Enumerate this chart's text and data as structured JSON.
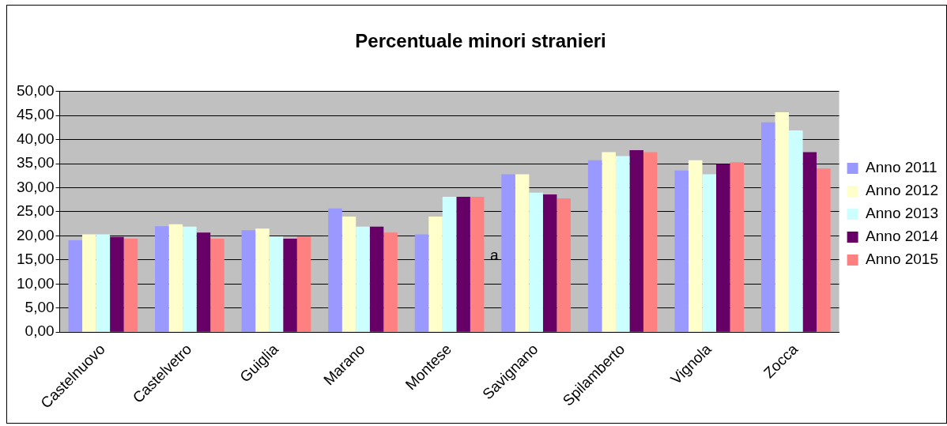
{
  "chart_data": {
    "type": "bar",
    "title": "Percentuale minori stranieri",
    "categories": [
      "Castelnuovo",
      "Castelvetro",
      "Guiglia",
      "Marano",
      "Montese",
      "Savignano",
      "Spilamberto",
      "Vignola",
      "Zocca"
    ],
    "series": [
      {
        "name": "Anno 2011",
        "color": "#9999ff",
        "values": [
          19.1,
          22.0,
          21.2,
          25.7,
          20.3,
          32.8,
          35.7,
          33.6,
          43.6
        ]
      },
      {
        "name": "Anno 2012",
        "color": "#ffffcc",
        "values": [
          20.3,
          22.4,
          21.5,
          24.0,
          24.0,
          32.8,
          37.4,
          35.7,
          45.7
        ]
      },
      {
        "name": "Anno 2013",
        "color": "#ccffff",
        "values": [
          20.3,
          21.9,
          19.9,
          21.9,
          28.1,
          29.0,
          36.6,
          32.8,
          41.9
        ]
      },
      {
        "name": "Anno 2014",
        "color": "#660066",
        "values": [
          19.8,
          20.7,
          19.4,
          21.9,
          28.1,
          28.6,
          37.8,
          34.9,
          37.4
        ]
      },
      {
        "name": "Anno 2015",
        "color": "#ff8080",
        "values": [
          19.4,
          19.4,
          19.9,
          20.7,
          28.1,
          27.8,
          37.4,
          35.3,
          34.0
        ]
      }
    ],
    "ylim": [
      0,
      50
    ],
    "yticks": [
      {
        "value": 0,
        "label": "0,00"
      },
      {
        "value": 5,
        "label": "5,00"
      },
      {
        "value": 10,
        "label": "10,00"
      },
      {
        "value": 15,
        "label": "15,00"
      },
      {
        "value": 20,
        "label": "20,00"
      },
      {
        "value": 25,
        "label": "25,00"
      },
      {
        "value": 30,
        "label": "30,00"
      },
      {
        "value": 35,
        "label": "35,00"
      },
      {
        "value": 40,
        "label": "40,00"
      },
      {
        "value": 45,
        "label": "45,00"
      },
      {
        "value": 50,
        "label": "50,00"
      }
    ],
    "grid": "y",
    "legend": "right",
    "annotations": [
      "a"
    ]
  }
}
